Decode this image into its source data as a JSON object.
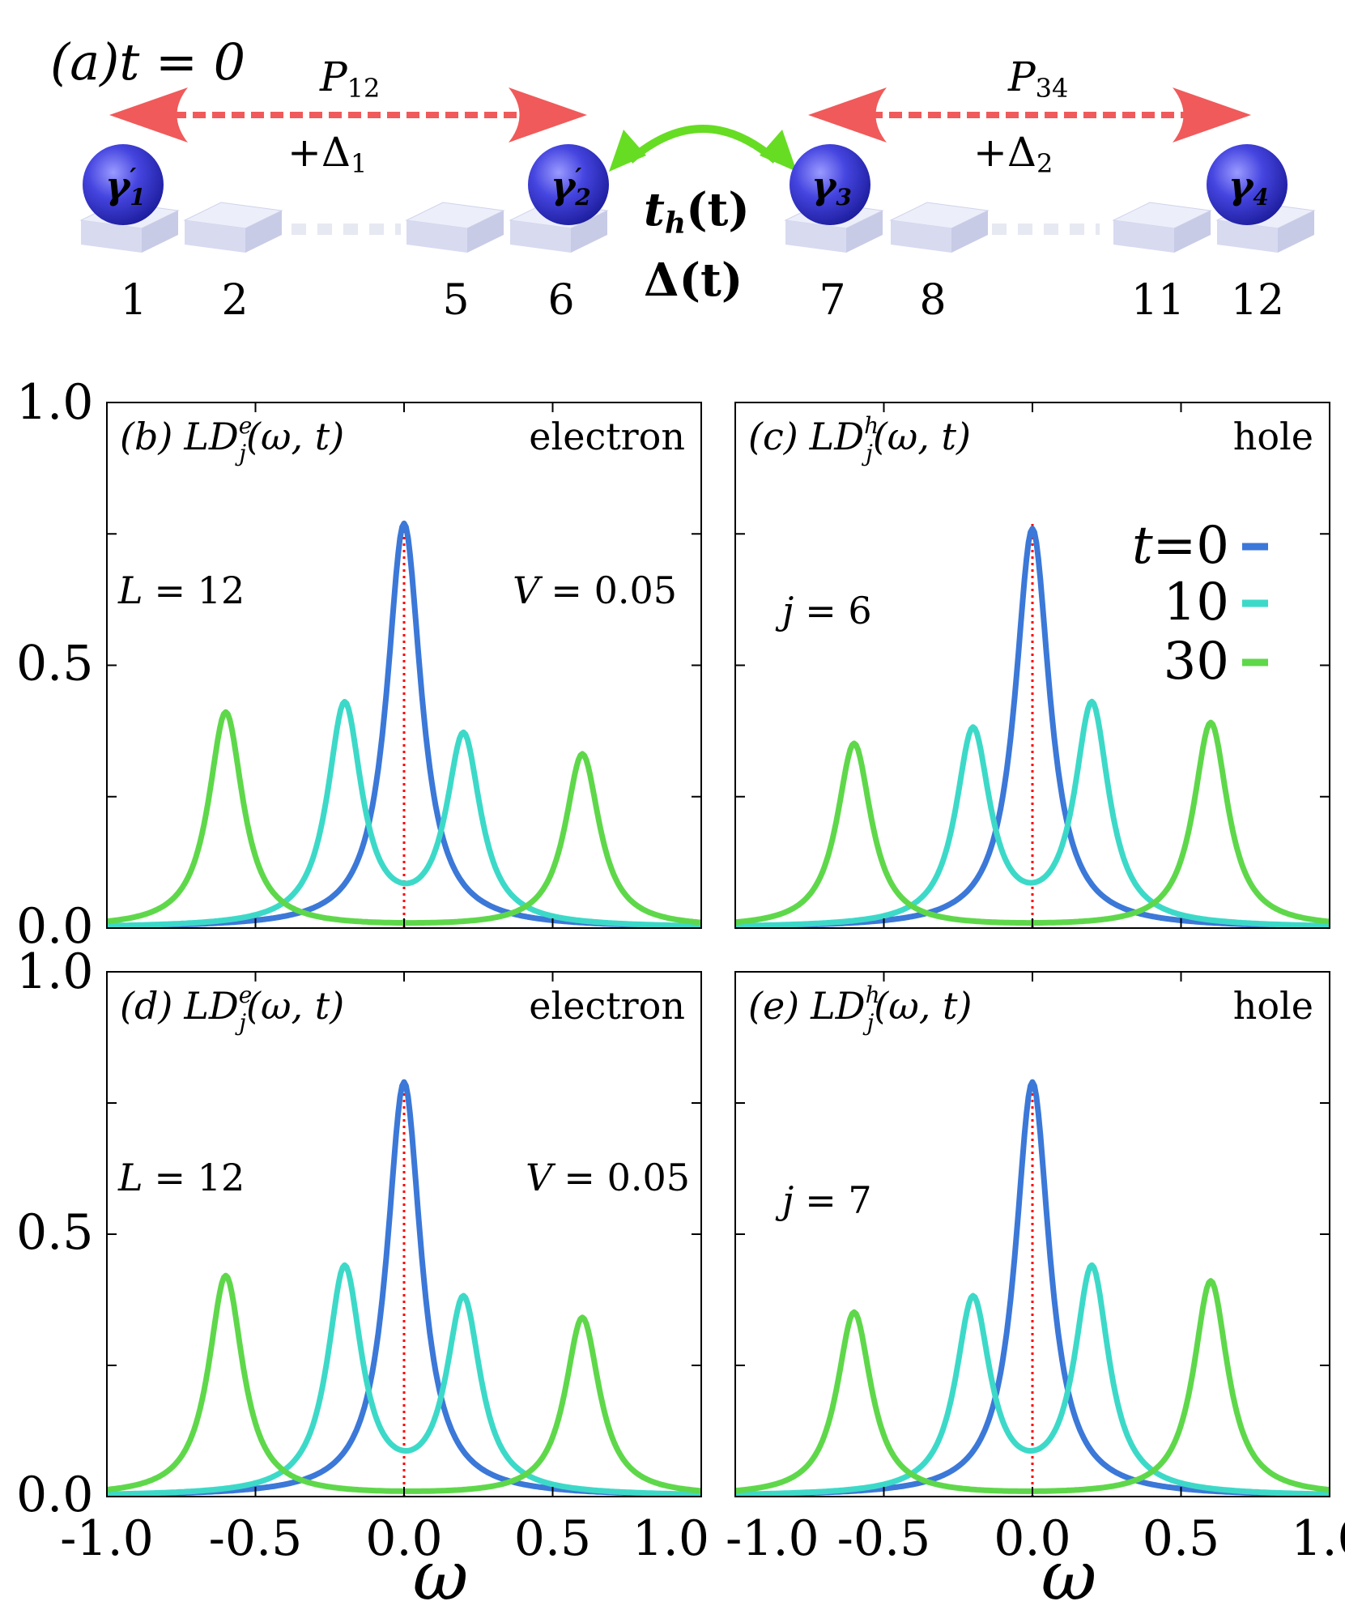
{
  "schematic": {
    "panel_label": "(a)",
    "time_label": "t = 0",
    "pairs": [
      {
        "parity": "P",
        "parity_sub": "12",
        "gap": "+Δ",
        "gap_sub": "1"
      },
      {
        "parity": "P",
        "parity_sub": "34",
        "gap": "+Δ",
        "gap_sub": "2"
      }
    ],
    "coupling": {
      "hopping": "t",
      "hopping_sub": "h",
      "hopping_arg": "(t)",
      "pairing": "Δ(t)"
    },
    "majoranas": [
      {
        "symbol": "γ",
        "sub": "1",
        "prime": true
      },
      {
        "symbol": "γ",
        "sub": "2",
        "prime": true
      },
      {
        "symbol": "γ",
        "sub": "3",
        "prime": false
      },
      {
        "symbol": "γ",
        "sub": "4",
        "prime": false
      }
    ],
    "site_labels": [
      "1",
      "2",
      "5",
      "6",
      "7",
      "8",
      "11",
      "12"
    ],
    "colors": {
      "arrow": "#f05a5a",
      "double_arrow": "#66dd22",
      "sphere": "#3d3dd6",
      "block": "#d8daf0"
    }
  },
  "axes_common": {
    "xlabel": "ω",
    "xlim": [
      -1.0,
      1.0
    ],
    "ylim": [
      0.0,
      1.0
    ],
    "xticks": [
      "-1.0",
      "-0.5",
      "0.0",
      "0.5",
      "1.0"
    ],
    "yticks": [
      "0.0",
      "0.5",
      "1.0"
    ],
    "grid": false,
    "reference_line": {
      "x": 0.0,
      "color": "#ff0000",
      "style": "dotted"
    }
  },
  "legend": {
    "title": "t",
    "entries": [
      "=0",
      "10",
      "30"
    ],
    "colors": [
      "#3b78d8",
      "#3dd9c8",
      "#5ed84a"
    ],
    "placement": "panel (c), upper-right"
  },
  "panels": [
    {
      "label": "(b)",
      "quantity": "LD",
      "superscript": "e",
      "subscript": "j",
      "args": "(ω, t)",
      "kind": "electron",
      "notes": [
        {
          "lhs": "L",
          "rhs": "= 12"
        },
        {
          "lhs": "V",
          "rhs": "= 0.05"
        }
      ]
    },
    {
      "label": "(c)",
      "quantity": "LD",
      "superscript": "h",
      "subscript": "j",
      "args": "(ω, t)",
      "kind": "hole",
      "notes": [
        {
          "lhs": "j",
          "rhs": "= 6"
        }
      ]
    },
    {
      "label": "(d)",
      "quantity": "LD",
      "superscript": "e",
      "subscript": "j",
      "args": "(ω, t)",
      "kind": "electron",
      "notes": [
        {
          "lhs": "L",
          "rhs": "= 12"
        },
        {
          "lhs": "V",
          "rhs": "= 0.05"
        }
      ]
    },
    {
      "label": "(e)",
      "quantity": "LD",
      "superscript": "h",
      "subscript": "j",
      "args": "(ω, t)",
      "kind": "hole",
      "notes": [
        {
          "lhs": "j",
          "rhs": "= 7"
        }
      ]
    }
  ],
  "chart_data": [
    {
      "type": "line",
      "panel": "b",
      "series": [
        {
          "name": "t=0",
          "peaks": [
            {
              "x": 0.0,
              "height": 0.77,
              "width": 0.07
            }
          ]
        },
        {
          "name": "10",
          "peaks": [
            {
              "x": -0.2,
              "height": 0.42,
              "width": 0.07
            },
            {
              "x": 0.2,
              "height": 0.36,
              "width": 0.07
            }
          ]
        },
        {
          "name": "30",
          "peaks": [
            {
              "x": -0.6,
              "height": 0.41,
              "width": 0.07
            },
            {
              "x": 0.6,
              "height": 0.33,
              "width": 0.07
            }
          ]
        }
      ]
    },
    {
      "type": "line",
      "panel": "c",
      "series": [
        {
          "name": "t=0",
          "peaks": [
            {
              "x": 0.0,
              "height": 0.76,
              "width": 0.07
            }
          ]
        },
        {
          "name": "10",
          "peaks": [
            {
              "x": -0.2,
              "height": 0.37,
              "width": 0.07
            },
            {
              "x": 0.2,
              "height": 0.42,
              "width": 0.07
            }
          ]
        },
        {
          "name": "30",
          "peaks": [
            {
              "x": -0.6,
              "height": 0.35,
              "width": 0.07
            },
            {
              "x": 0.6,
              "height": 0.39,
              "width": 0.07
            }
          ]
        }
      ]
    },
    {
      "type": "line",
      "panel": "d",
      "series": [
        {
          "name": "t=0",
          "peaks": [
            {
              "x": 0.0,
              "height": 0.79,
              "width": 0.07
            }
          ]
        },
        {
          "name": "10",
          "peaks": [
            {
              "x": -0.2,
              "height": 0.43,
              "width": 0.07
            },
            {
              "x": 0.2,
              "height": 0.37,
              "width": 0.07
            }
          ]
        },
        {
          "name": "30",
          "peaks": [
            {
              "x": -0.6,
              "height": 0.42,
              "width": 0.07
            },
            {
              "x": 0.6,
              "height": 0.34,
              "width": 0.07
            }
          ]
        }
      ]
    },
    {
      "type": "line",
      "panel": "e",
      "series": [
        {
          "name": "t=0",
          "peaks": [
            {
              "x": 0.0,
              "height": 0.79,
              "width": 0.07
            }
          ]
        },
        {
          "name": "10",
          "peaks": [
            {
              "x": -0.2,
              "height": 0.37,
              "width": 0.07
            },
            {
              "x": 0.2,
              "height": 0.43,
              "width": 0.07
            }
          ]
        },
        {
          "name": "30",
          "peaks": [
            {
              "x": -0.6,
              "height": 0.35,
              "width": 0.07
            },
            {
              "x": 0.6,
              "height": 0.41,
              "width": 0.07
            }
          ]
        }
      ]
    }
  ]
}
